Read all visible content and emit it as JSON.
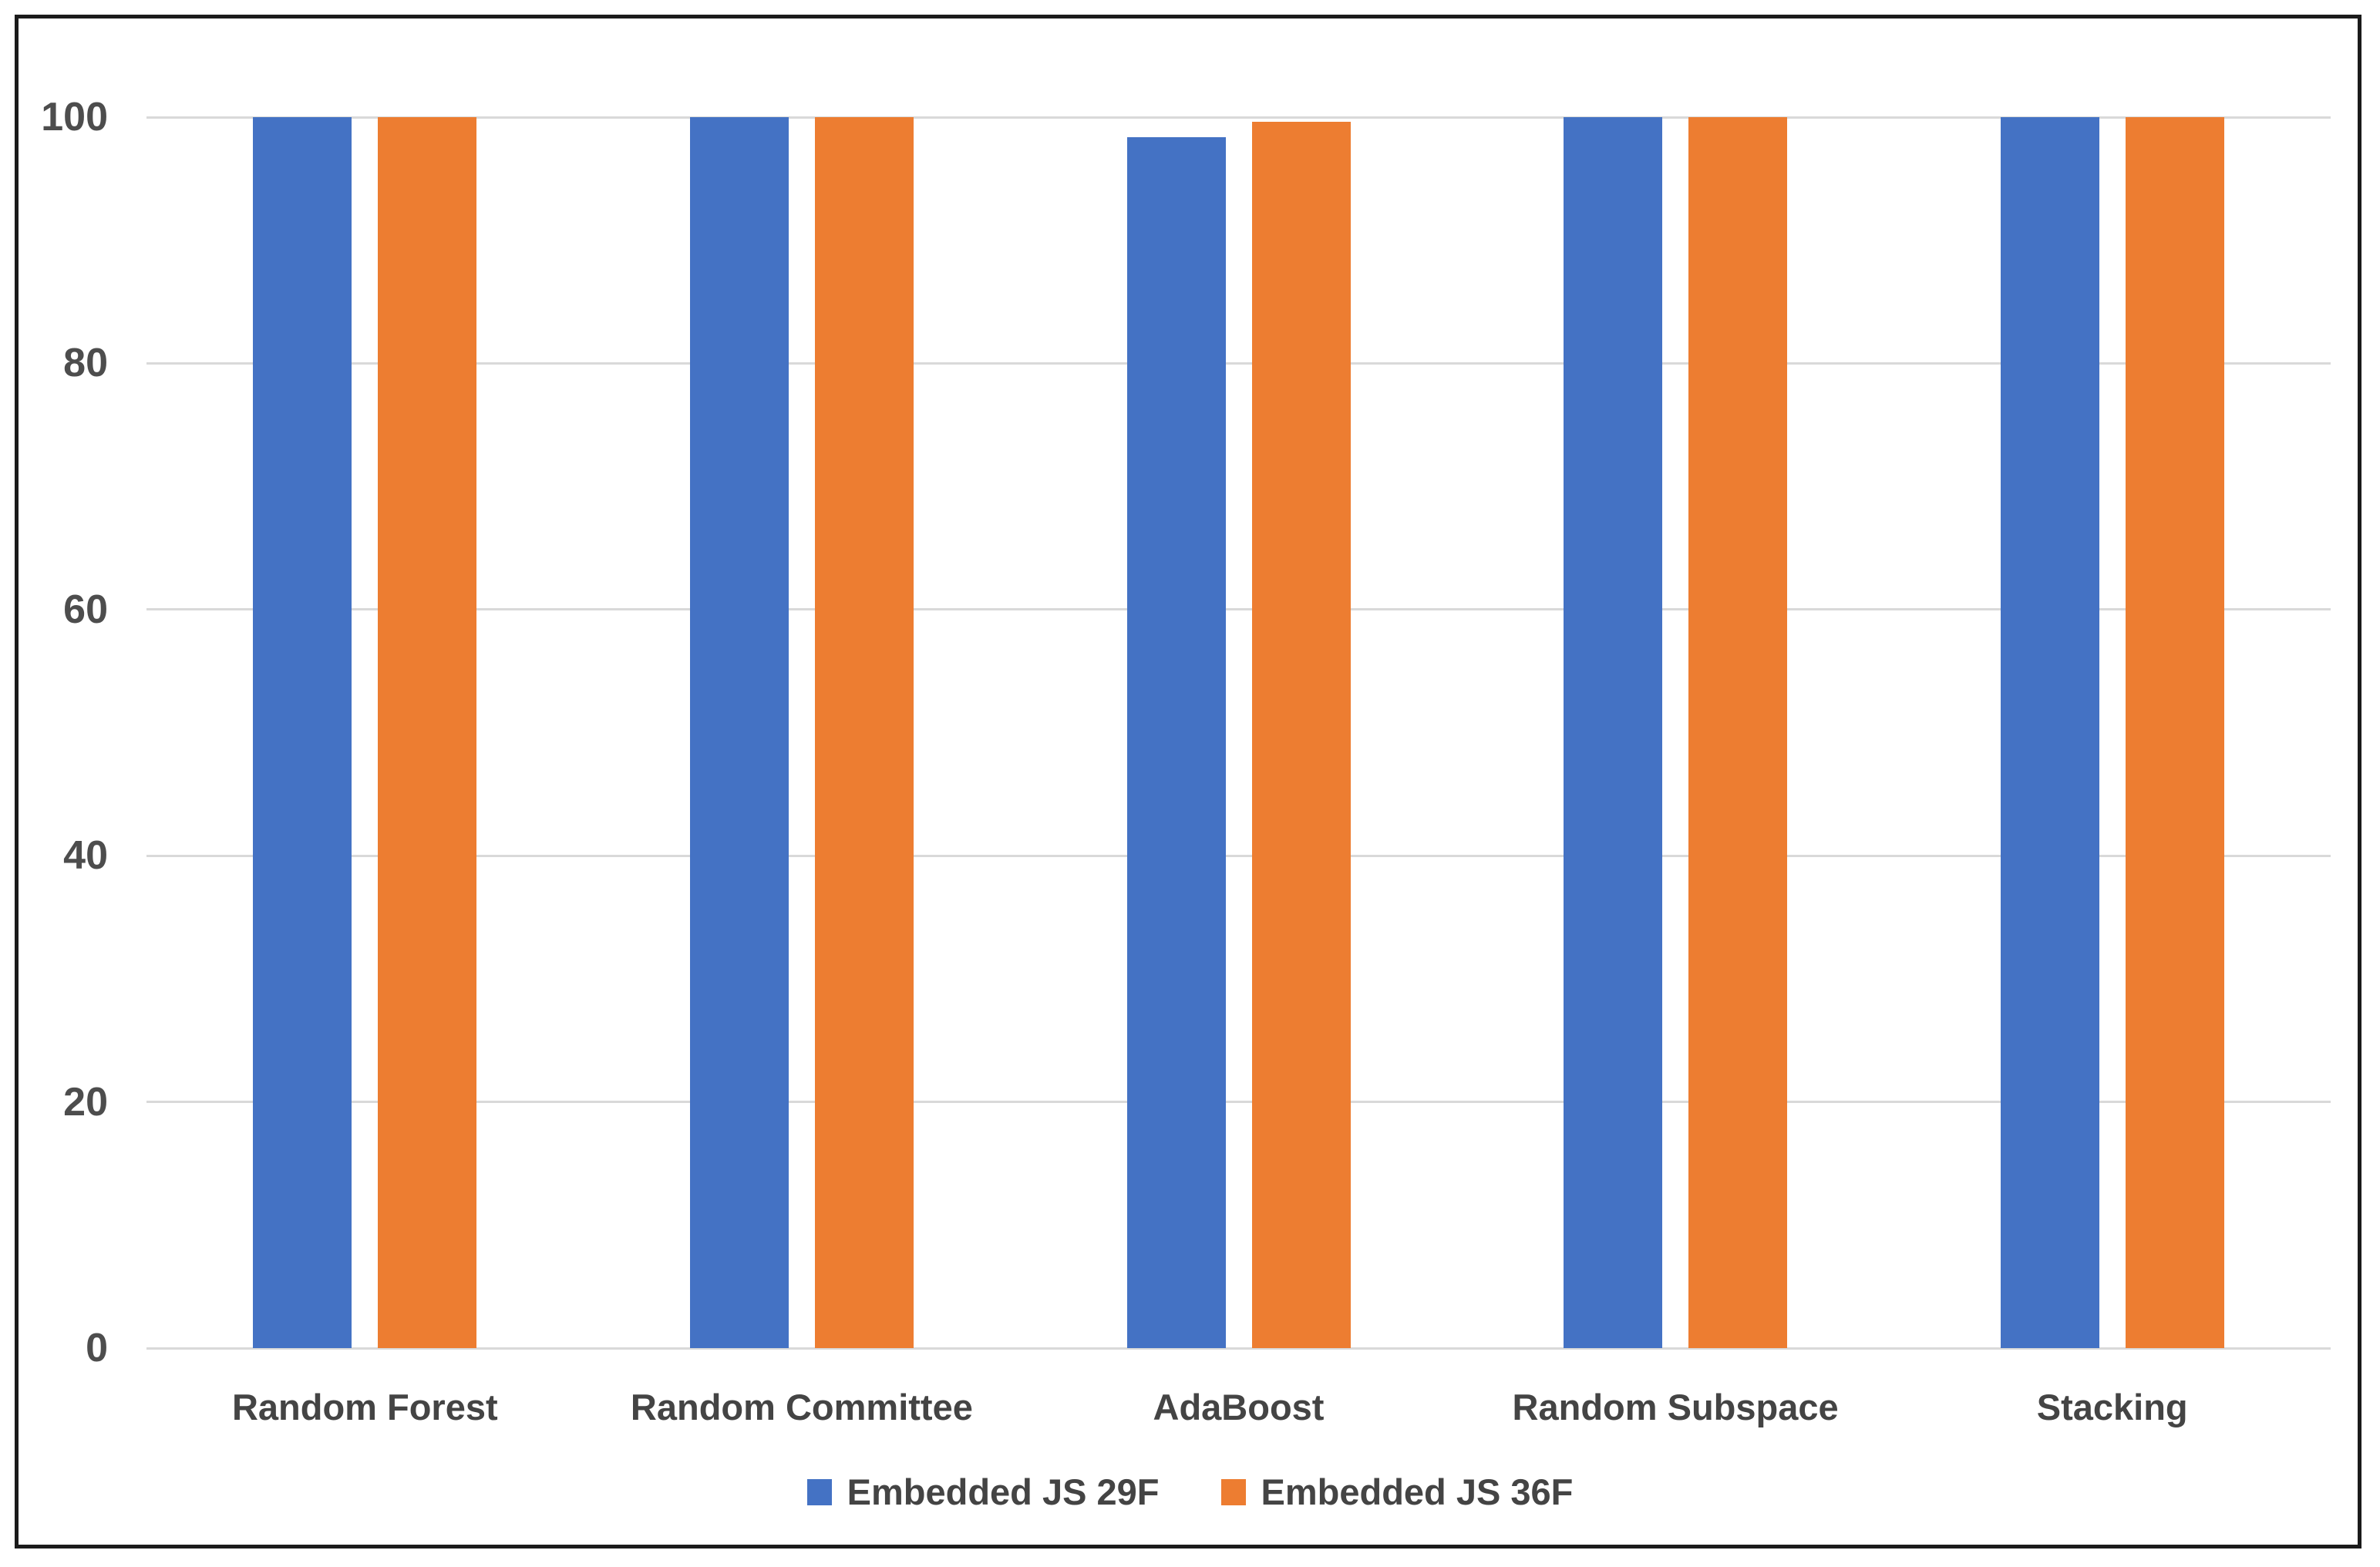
{
  "chart_data": {
    "type": "bar",
    "title": "",
    "xlabel": "",
    "ylabel": "",
    "categories": [
      "Random Forest",
      "Random Committee",
      "AdaBoost",
      "Random Subspace",
      "Stacking"
    ],
    "series": [
      {
        "name": "Embedded JS 29F",
        "color": "#4472C4",
        "values": [
          100,
          100,
          98.4,
          100,
          100
        ]
      },
      {
        "name": "Embedded JS 36F",
        "color": "#ED7D31",
        "values": [
          100,
          100,
          99.6,
          100,
          100
        ]
      }
    ],
    "ylim": [
      0,
      100
    ],
    "yticks": [
      0,
      20,
      40,
      60,
      80,
      100
    ],
    "grid": true,
    "legend_position": "bottom"
  }
}
